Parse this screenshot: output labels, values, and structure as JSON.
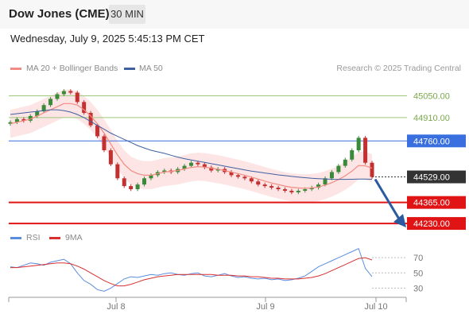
{
  "header": {
    "instrument": "Dow Jones (CME)",
    "timeframe": "30 MIN"
  },
  "datetime": "Wednesday, July 9, 2025 5:45:13 PM CET",
  "legend": {
    "ma20_label": "MA 20 + Bollinger Bands",
    "ma50_label": "MA 50",
    "rsi_label": "RSI",
    "ma9_label": "9MA",
    "credit": "Research © 2025 Trading Central"
  },
  "colors": {
    "ma20": "#f28b82",
    "ma50": "#3f5f9f",
    "band_fill": "#fde0e0",
    "resistance": "#9cc97a",
    "pivot": "#3a6fe0",
    "support": "#e01414",
    "current": "#333333",
    "arrow": "#2c5aa0",
    "rsi": "#5b8dde",
    "rsi_ma": "#d83030",
    "up_candle": "#3a8a3a",
    "down_candle": "#c43030"
  },
  "chart_data": [
    {
      "type": "line",
      "title": "",
      "x_ticks": [
        "Jul 8",
        "Jul 9",
        "Jul 10"
      ],
      "levels": [
        {
          "label": "45050.00",
          "value": 45050,
          "kind": "resistance"
        },
        {
          "label": "44910.00",
          "value": 44910,
          "kind": "resistance"
        },
        {
          "label": "44760.00",
          "value": 44760,
          "kind": "pivot"
        },
        {
          "label": "44529.00",
          "value": 44529,
          "kind": "current"
        },
        {
          "label": "44365.00",
          "value": 44365,
          "kind": "support"
        },
        {
          "label": "44230.00",
          "value": 44230,
          "kind": "support"
        }
      ],
      "ylim": [
        44210,
        45180
      ],
      "price_close": [
        44880,
        44900,
        44890,
        44920,
        44950,
        44990,
        45030,
        45060,
        45080,
        45070,
        45010,
        44940,
        44860,
        44790,
        44700,
        44610,
        44520,
        44470,
        44450,
        44480,
        44520,
        44540,
        44560,
        44570,
        44560,
        44580,
        44600,
        44620,
        44610,
        44590,
        44570,
        44580,
        44560,
        44540,
        44530,
        44520,
        44500,
        44480,
        44470,
        44460,
        44450,
        44440,
        44430,
        44440,
        44450,
        44460,
        44480,
        44520,
        44560,
        44600,
        44640,
        44700,
        44780,
        44620,
        44529
      ],
      "ma20": [
        44870,
        44880,
        44890,
        44900,
        44920,
        44940,
        44960,
        44980,
        45000,
        45000,
        44990,
        44960,
        44920,
        44870,
        44810,
        44740,
        44670,
        44610,
        44570,
        44550,
        44540,
        44540,
        44550,
        44560,
        44565,
        44570,
        44580,
        44590,
        44595,
        44592,
        44585,
        44578,
        44570,
        44560,
        44550,
        44540,
        44528,
        44515,
        44502,
        44490,
        44480,
        44470,
        44462,
        44458,
        44456,
        44458,
        44464,
        44476,
        44492,
        44512,
        44536,
        44566,
        44602,
        44600,
        44585
      ],
      "ma50": [
        44930,
        44935,
        44940,
        44945,
        44950,
        44955,
        44960,
        44960,
        44955,
        44945,
        44930,
        44910,
        44885,
        44860,
        44835,
        44810,
        44790,
        44770,
        44750,
        44730,
        44715,
        44700,
        44690,
        44680,
        44668,
        44656,
        44646,
        44638,
        44630,
        44622,
        44614,
        44606,
        44598,
        44590,
        44582,
        44574,
        44566,
        44560,
        44554,
        44548,
        44542,
        44537,
        44532,
        44528,
        44524,
        44520,
        44518,
        44516,
        44514,
        44513,
        44513,
        44514,
        44515,
        44515,
        44514
      ]
    },
    {
      "type": "line",
      "title": "",
      "y_ticks": [
        "70",
        "50",
        "30"
      ],
      "ylim": [
        20,
        90
      ],
      "series": [
        {
          "name": "RSI",
          "values": [
            58,
            57,
            60,
            63,
            62,
            60,
            64,
            66,
            68,
            62,
            50,
            40,
            35,
            28,
            26,
            30,
            36,
            42,
            45,
            44,
            46,
            48,
            47,
            49,
            50,
            48,
            47,
            49,
            50,
            46,
            45,
            47,
            49,
            46,
            44,
            45,
            43,
            42,
            43,
            41,
            42,
            40,
            41,
            43,
            46,
            52,
            58,
            62,
            66,
            70,
            74,
            78,
            82,
            56,
            45
          ]
        },
        {
          "name": "9MA",
          "values": [
            57,
            57,
            58,
            59,
            60,
            61,
            62,
            63,
            63,
            62,
            59,
            55,
            50,
            45,
            40,
            36,
            33,
            33,
            35,
            38,
            41,
            43,
            45,
            46,
            47,
            48,
            48,
            48,
            48,
            48,
            48,
            47,
            47,
            47,
            46,
            46,
            45,
            45,
            44,
            43,
            43,
            42,
            42,
            42,
            43,
            44,
            46,
            49,
            53,
            57,
            61,
            65,
            69,
            70,
            67
          ]
        }
      ]
    }
  ]
}
